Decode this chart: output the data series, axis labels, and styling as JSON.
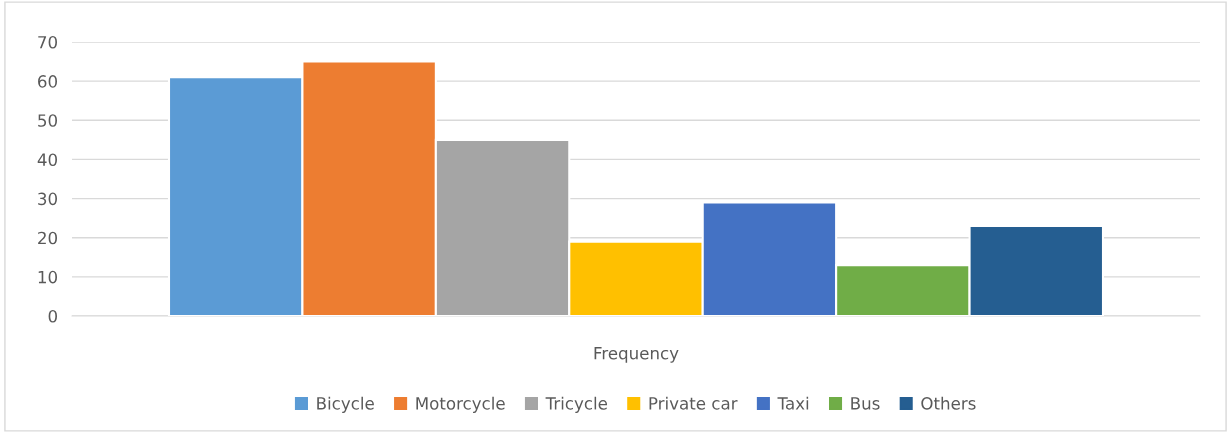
{
  "chart_data": {
    "type": "bar",
    "categories": [
      "Frequency"
    ],
    "series": [
      {
        "name": "Bicycle",
        "color": "#5b9bd5",
        "values": [
          61
        ]
      },
      {
        "name": "Motorcycle",
        "color": "#ed7d31",
        "values": [
          65
        ]
      },
      {
        "name": "Tricycle",
        "color": "#a5a5a5",
        "values": [
          45
        ]
      },
      {
        "name": "Private car",
        "color": "#ffc000",
        "values": [
          19
        ]
      },
      {
        "name": "Taxi",
        "color": "#4472c4",
        "values": [
          29
        ]
      },
      {
        "name": "Bus",
        "color": "#70ad47",
        "values": [
          13
        ]
      },
      {
        "name": "Others",
        "color": "#255e91",
        "values": [
          23
        ]
      }
    ],
    "ylim": [
      0,
      70
    ],
    "yticks": [
      0,
      10,
      20,
      30,
      40,
      50,
      60,
      70
    ],
    "grid": "y",
    "legend": "bottom"
  }
}
